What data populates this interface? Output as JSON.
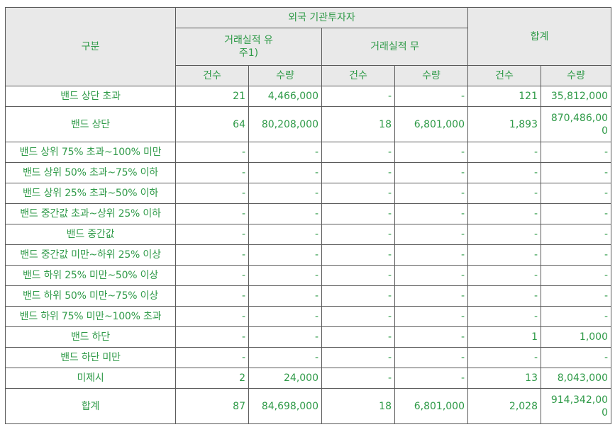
{
  "header": {
    "category": "구분",
    "foreign_institutional": "외국 기관투자자",
    "with_record": "거래실적 유\n주1)",
    "without_record": "거래실적 무",
    "total": "합계",
    "count": "건수",
    "quantity": "수량"
  },
  "rows": [
    {
      "label": "밴드 상단 초과",
      "c1": "21",
      "q1": "4,466,000",
      "c2": "-",
      "q2": "-",
      "ct": "121",
      "qt": "35,812,000"
    },
    {
      "label": "밴드 상단",
      "c1": "64",
      "q1": "80,208,000",
      "c2": "18",
      "q2": "6,801,000",
      "ct": "1,893",
      "qt": "870,486,00\n0"
    },
    {
      "label": "밴드 상위 75% 초과~100% 미만",
      "c1": "-",
      "q1": "-",
      "c2": "-",
      "q2": "-",
      "ct": "-",
      "qt": "-"
    },
    {
      "label": "밴드 상위 50% 초과~75% 이하",
      "c1": "-",
      "q1": "-",
      "c2": "-",
      "q2": "-",
      "ct": "-",
      "qt": "-"
    },
    {
      "label": "밴드 상위 25% 초과~50% 이하",
      "c1": "-",
      "q1": "-",
      "c2": "-",
      "q2": "-",
      "ct": "-",
      "qt": "-"
    },
    {
      "label": "밴드 중간값 초과~상위 25% 이하",
      "c1": "-",
      "q1": "-",
      "c2": "-",
      "q2": "-",
      "ct": "-",
      "qt": "-"
    },
    {
      "label": "밴드 중간값",
      "c1": "-",
      "q1": "-",
      "c2": "-",
      "q2": "-",
      "ct": "-",
      "qt": "-"
    },
    {
      "label": "밴드 중간값 미만~하위 25% 이상",
      "c1": "-",
      "q1": "-",
      "c2": "-",
      "q2": "-",
      "ct": "-",
      "qt": "-"
    },
    {
      "label": "밴드 하위 25% 미만~50% 이상",
      "c1": "-",
      "q1": "-",
      "c2": "-",
      "q2": "-",
      "ct": "-",
      "qt": "-"
    },
    {
      "label": "밴드 하위 50% 미만~75% 이상",
      "c1": "-",
      "q1": "-",
      "c2": "-",
      "q2": "-",
      "ct": "-",
      "qt": "-"
    },
    {
      "label": "밴드 하위 75% 미만~100% 초과",
      "c1": "-",
      "q1": "-",
      "c2": "-",
      "q2": "-",
      "ct": "-",
      "qt": "-"
    },
    {
      "label": "밴드 하단",
      "c1": "-",
      "q1": "-",
      "c2": "-",
      "q2": "-",
      "ct": "1",
      "qt": "1,000"
    },
    {
      "label": "밴드 하단 미만",
      "c1": "-",
      "q1": "-",
      "c2": "-",
      "q2": "-",
      "ct": "-",
      "qt": "-"
    },
    {
      "label": "미제시",
      "c1": "2",
      "q1": "24,000",
      "c2": "-",
      "q2": "-",
      "ct": "13",
      "qt": "8,043,000"
    },
    {
      "label": "합계",
      "c1": "87",
      "q1": "84,698,000",
      "c2": "18",
      "q2": "6,801,000",
      "ct": "2,028",
      "qt": "914,342,00\n0"
    }
  ],
  "colors": {
    "text": "#2f9a48",
    "header_bg": "#e9e9e9",
    "border": "#5a5a5a"
  }
}
